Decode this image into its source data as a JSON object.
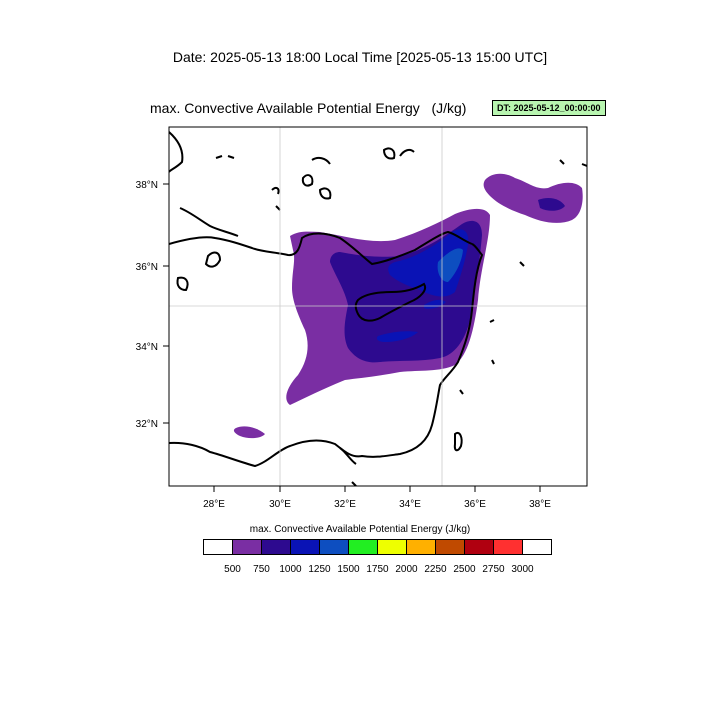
{
  "header": {
    "date_line": "Date: 2025-05-13  18:00 Local Time [2025-05-13  15:00 UTC]",
    "map_title": "max. Convective Available Potential Energy   (J/kg)",
    "dt_badge": "DT: 2025-05-12_00:00:00"
  },
  "map": {
    "lon_ticks": [
      "28°E",
      "30°E",
      "32°E",
      "34°E",
      "36°E",
      "38°E"
    ],
    "lat_ticks": [
      "38°N",
      "36°N",
      "34°N",
      "32°N"
    ],
    "lon_range": [
      26.5,
      39.5
    ],
    "lat_range": [
      30.5,
      39.4
    ],
    "gridlines": {
      "lon": 35,
      "lat": 35,
      "lon2": 30
    }
  },
  "colorbar": {
    "title": "max. Convective Available Potential Energy  (J/kg)",
    "labels": [
      "500",
      "750",
      "1000",
      "1250",
      "1500",
      "1750",
      "2000",
      "2250",
      "2500",
      "2750",
      "3000"
    ],
    "colors": [
      "#ffffff",
      "#7a2ea3",
      "#2d0a8f",
      "#0a13b5",
      "#0d4ec0",
      "#22ee22",
      "#eeff00",
      "#ffb000",
      "#c04a00",
      "#b00010",
      "#ff3030",
      "#ffffff"
    ]
  }
}
